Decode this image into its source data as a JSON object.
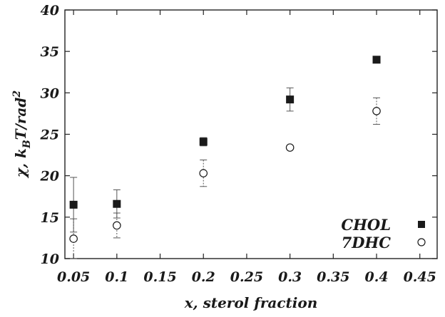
{
  "chart_data": {
    "type": "scatter",
    "title": "",
    "xlabel": "x, sterol fraction",
    "ylabel_parts": {
      "pre": "χ, k",
      "sub": "B",
      "mid": "T/rad",
      "sup": "2"
    },
    "xlim": [
      0.04,
      0.47
    ],
    "ylim": [
      10,
      40
    ],
    "xticks": [
      0.05,
      0.1,
      0.15,
      0.2,
      0.25,
      0.3,
      0.35,
      0.4,
      0.45
    ],
    "xtick_labels": [
      "0.05",
      "0.1",
      "0.15",
      "0.2",
      "0.25",
      "0.3",
      "0.35",
      "0.4",
      "0.45"
    ],
    "yticks": [
      10,
      15,
      20,
      25,
      30,
      35,
      40
    ],
    "ytick_labels": [
      "10",
      "15",
      "20",
      "25",
      "30",
      "35",
      "40"
    ],
    "grid": false,
    "legend_position": "bottom-right",
    "series": [
      {
        "name": "CHOL",
        "marker": "filled-square",
        "x": [
          0.05,
          0.1,
          0.2,
          0.3,
          0.4
        ],
        "y": [
          16.5,
          16.6,
          24.1,
          29.2,
          34.0
        ],
        "err_low": [
          3.3,
          1.7,
          0.5,
          1.4,
          0
        ],
        "err_high": [
          3.3,
          1.7,
          0.5,
          1.4,
          0
        ]
      },
      {
        "name": "7DHC",
        "marker": "open-circle",
        "x": [
          0.05,
          0.1,
          0.2,
          0.3,
          0.4
        ],
        "y": [
          12.4,
          14.0,
          20.3,
          23.4,
          27.8
        ],
        "err_low": [
          2.4,
          1.5,
          1.6,
          0,
          1.6
        ],
        "err_high": [
          2.4,
          1.5,
          1.6,
          0,
          1.6
        ]
      }
    ]
  }
}
